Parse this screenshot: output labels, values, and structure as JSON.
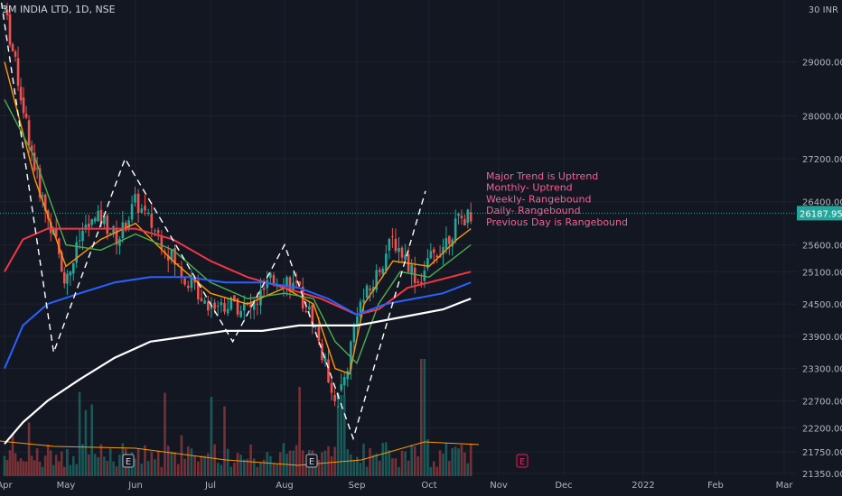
{
  "header": {
    "symbol": "3M INDIA LTD, 1D, NSE"
  },
  "y_unit_label": "30 INR",
  "last_price": {
    "label": "26187.95",
    "value": 26187.95
  },
  "annotation_lines": [
    "Major Trend is Uptrend",
    "Monthly- Uptrend",
    "Weekly- Rangebound",
    "Daily- Rangebound",
    "Previous Day is Rangebound"
  ],
  "earnings_markers": [
    "E",
    "E",
    "E"
  ],
  "colors": {
    "background": "#131722",
    "bull": "#26a69a",
    "bear": "#ef5350",
    "ma_fast": "#ff9800",
    "ma_mid": "#4caf50",
    "ma_slow": "#f23645",
    "ma_100": "#2962ff",
    "ma_200": "#ffffff",
    "annotation": "#f06292",
    "price_tag": "#26a69a"
  },
  "chart_data": {
    "type": "candlestick",
    "x_ticks": [
      "Apr",
      "May",
      "Jun",
      "Jul",
      "Aug",
      "Sep",
      "Oct",
      "Nov",
      "Dec",
      "2022",
      "Feb",
      "Mar"
    ],
    "y_ticks": [
      21350,
      21750,
      22200,
      22700,
      23300,
      23900,
      24500,
      25100,
      25600,
      26400,
      27200,
      28000,
      29000
    ],
    "y_tick_labels": [
      "21350.00",
      "21750.00",
      "22200.00",
      "22700.00",
      "23300.00",
      "23900.00",
      "24500.00",
      "25100.00",
      "25600.00",
      "26400.00",
      "27200.00",
      "28000.00",
      "29000.00"
    ],
    "ylim": [
      21300,
      30150
    ],
    "path_points": [
      {
        "month": 0.0,
        "price": 30000
      },
      {
        "month": 0.2,
        "price": 28800
      },
      {
        "month": 0.35,
        "price": 27900
      },
      {
        "month": 0.5,
        "price": 27000
      },
      {
        "month": 0.65,
        "price": 26300
      },
      {
        "month": 0.85,
        "price": 25600
      },
      {
        "month": 1.0,
        "price": 24900
      },
      {
        "month": 1.25,
        "price": 25900
      },
      {
        "month": 1.5,
        "price": 26100
      },
      {
        "month": 1.75,
        "price": 25700
      },
      {
        "month": 2.0,
        "price": 26400
      },
      {
        "month": 2.3,
        "price": 25800
      },
      {
        "month": 2.6,
        "price": 25100
      },
      {
        "month": 2.85,
        "price": 24700
      },
      {
        "month": 3.0,
        "price": 24500
      },
      {
        "month": 3.3,
        "price": 24500
      },
      {
        "month": 3.55,
        "price": 24400
      },
      {
        "month": 3.8,
        "price": 24900
      },
      {
        "month": 4.0,
        "price": 25000
      },
      {
        "month": 4.2,
        "price": 24700
      },
      {
        "month": 4.4,
        "price": 24200
      },
      {
        "month": 4.55,
        "price": 23400
      },
      {
        "month": 4.72,
        "price": 22700
      },
      {
        "month": 4.85,
        "price": 23200
      },
      {
        "month": 5.0,
        "price": 24400
      },
      {
        "month": 5.2,
        "price": 24800
      },
      {
        "month": 5.35,
        "price": 25300
      },
      {
        "month": 5.5,
        "price": 25700
      },
      {
        "month": 5.7,
        "price": 25300
      },
      {
        "month": 5.85,
        "price": 24900
      },
      {
        "month": 6.0,
        "price": 25300
      },
      {
        "month": 6.2,
        "price": 25600
      },
      {
        "month": 6.4,
        "price": 26000
      },
      {
        "month": 6.6,
        "price": 26190
      }
    ],
    "moving_averages": [
      {
        "name": "ma_fast",
        "points": [
          [
            0,
            29000
          ],
          [
            0.5,
            26800
          ],
          [
            1,
            25200
          ],
          [
            1.5,
            25700
          ],
          [
            2,
            26000
          ],
          [
            2.5,
            25300
          ],
          [
            3,
            24700
          ],
          [
            3.5,
            24500
          ],
          [
            4,
            24800
          ],
          [
            4.4,
            24500
          ],
          [
            4.7,
            23300
          ],
          [
            4.9,
            23200
          ],
          [
            5.1,
            24500
          ],
          [
            5.5,
            25300
          ],
          [
            6,
            25200
          ],
          [
            6.4,
            25700
          ],
          [
            6.6,
            25900
          ]
        ]
      },
      {
        "name": "ma_mid",
        "points": [
          [
            0,
            28300
          ],
          [
            0.5,
            27200
          ],
          [
            1,
            25600
          ],
          [
            1.5,
            25500
          ],
          [
            2,
            25800
          ],
          [
            2.5,
            25500
          ],
          [
            3,
            24900
          ],
          [
            3.5,
            24600
          ],
          [
            4,
            24700
          ],
          [
            4.4,
            24600
          ],
          [
            4.7,
            23800
          ],
          [
            5.0,
            23400
          ],
          [
            5.3,
            24500
          ],
          [
            5.6,
            25100
          ],
          [
            6,
            25000
          ],
          [
            6.4,
            25400
          ],
          [
            6.6,
            25600
          ]
        ]
      },
      {
        "name": "ma_slow",
        "points": [
          [
            0,
            25100
          ],
          [
            0.3,
            25700
          ],
          [
            0.7,
            25900
          ],
          [
            1.2,
            25900
          ],
          [
            1.6,
            25900
          ],
          [
            2,
            25900
          ],
          [
            2.5,
            25700
          ],
          [
            3,
            25300
          ],
          [
            3.5,
            25000
          ],
          [
            4,
            24800
          ],
          [
            4.5,
            24600
          ],
          [
            5.0,
            24300
          ],
          [
            5.3,
            24400
          ],
          [
            5.7,
            24800
          ],
          [
            6,
            24900
          ],
          [
            6.3,
            25000
          ],
          [
            6.6,
            25100
          ]
        ]
      },
      {
        "name": "ma_100",
        "points": [
          [
            0,
            23300
          ],
          [
            0.3,
            24100
          ],
          [
            0.7,
            24500
          ],
          [
            1.2,
            24700
          ],
          [
            1.7,
            24900
          ],
          [
            2.2,
            25000
          ],
          [
            2.7,
            25000
          ],
          [
            3.2,
            24900
          ],
          [
            3.7,
            24900
          ],
          [
            4.2,
            24800
          ],
          [
            4.6,
            24600
          ],
          [
            5.0,
            24300
          ],
          [
            5.4,
            24500
          ],
          [
            5.8,
            24600
          ],
          [
            6.2,
            24700
          ],
          [
            6.6,
            24900
          ]
        ]
      },
      {
        "name": "ma_200",
        "points": [
          [
            0,
            21900
          ],
          [
            0.3,
            22300
          ],
          [
            0.7,
            22700
          ],
          [
            1.2,
            23100
          ],
          [
            1.7,
            23500
          ],
          [
            2.2,
            23800
          ],
          [
            2.7,
            23900
          ],
          [
            3.2,
            24000
          ],
          [
            3.7,
            24000
          ],
          [
            4.2,
            24100
          ],
          [
            4.6,
            24100
          ],
          [
            5.0,
            24100
          ],
          [
            5.4,
            24200
          ],
          [
            5.8,
            24300
          ],
          [
            6.2,
            24400
          ],
          [
            6.6,
            24600
          ]
        ]
      }
    ],
    "zigzag": [
      [
        -0.05,
        30100
      ],
      [
        0.8,
        23600
      ],
      [
        1.85,
        27200
      ],
      [
        3.3,
        23800
      ],
      [
        4.0,
        25600
      ],
      [
        4.95,
        22000
      ],
      [
        5.95,
        26600
      ]
    ]
  }
}
